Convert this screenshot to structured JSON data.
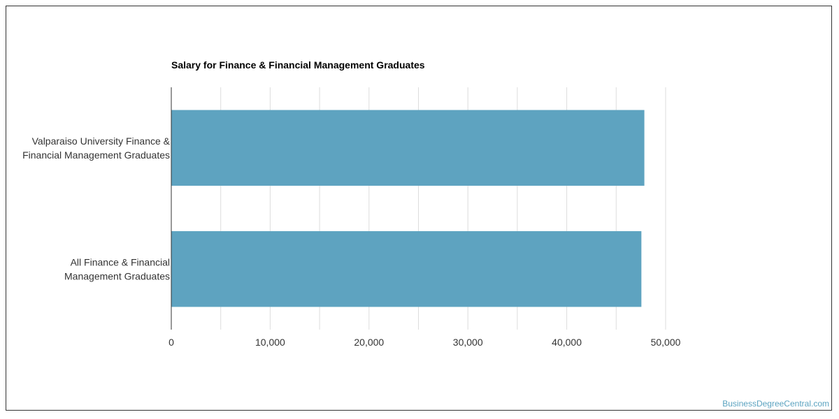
{
  "chart_data": {
    "type": "bar",
    "orientation": "horizontal",
    "title": "Salary for Finance & Financial Management Graduates",
    "categories": [
      [
        "Valparaiso University Finance &",
        "Financial Management Graduates"
      ],
      [
        "All Finance & Financial",
        "Management Graduates"
      ]
    ],
    "values": [
      47850,
      47550
    ],
    "xlim": [
      0,
      50000
    ],
    "xticks": [
      0,
      10000,
      20000,
      30000,
      40000,
      50000
    ],
    "xtick_labels": [
      "0",
      "10,000",
      "20,000",
      "30,000",
      "40,000",
      "50,000"
    ],
    "grid": true,
    "bar_color": "#5ea3c0"
  },
  "watermark": "BusinessDegreeCentral.com"
}
